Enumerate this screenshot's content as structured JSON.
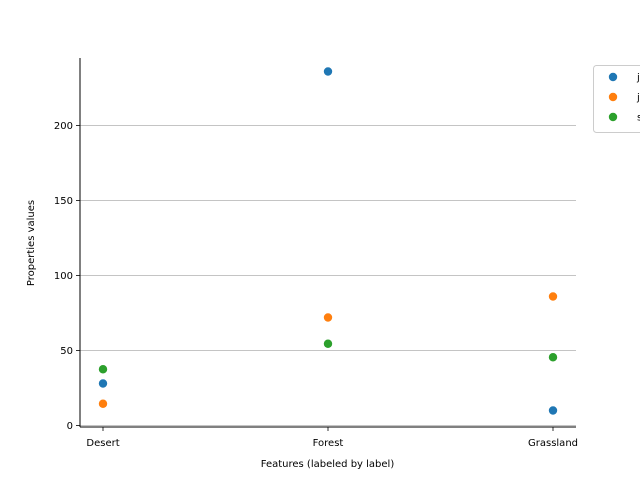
{
  "chart_data": {
    "type": "scatter",
    "title": "",
    "xlabel": "Features (labeled by label)",
    "ylabel": "Properties values",
    "categories": [
      "Desert",
      "Forest",
      "Grassland"
    ],
    "ylim": [
      -1,
      245
    ],
    "yticks": [
      0,
      50,
      100,
      150,
      200
    ],
    "grid": "y",
    "legend_position": "upper-right-outside",
    "series": [
      {
        "name": "j",
        "color": "#1f77b4",
        "values": [
          28,
          236,
          10
        ]
      },
      {
        "name": "j",
        "color": "#ff7f0e",
        "values": [
          14.5,
          72,
          86
        ]
      },
      {
        "name": "s",
        "color": "#2ca02c",
        "values": [
          37.5,
          54.5,
          45.5
        ]
      }
    ]
  }
}
